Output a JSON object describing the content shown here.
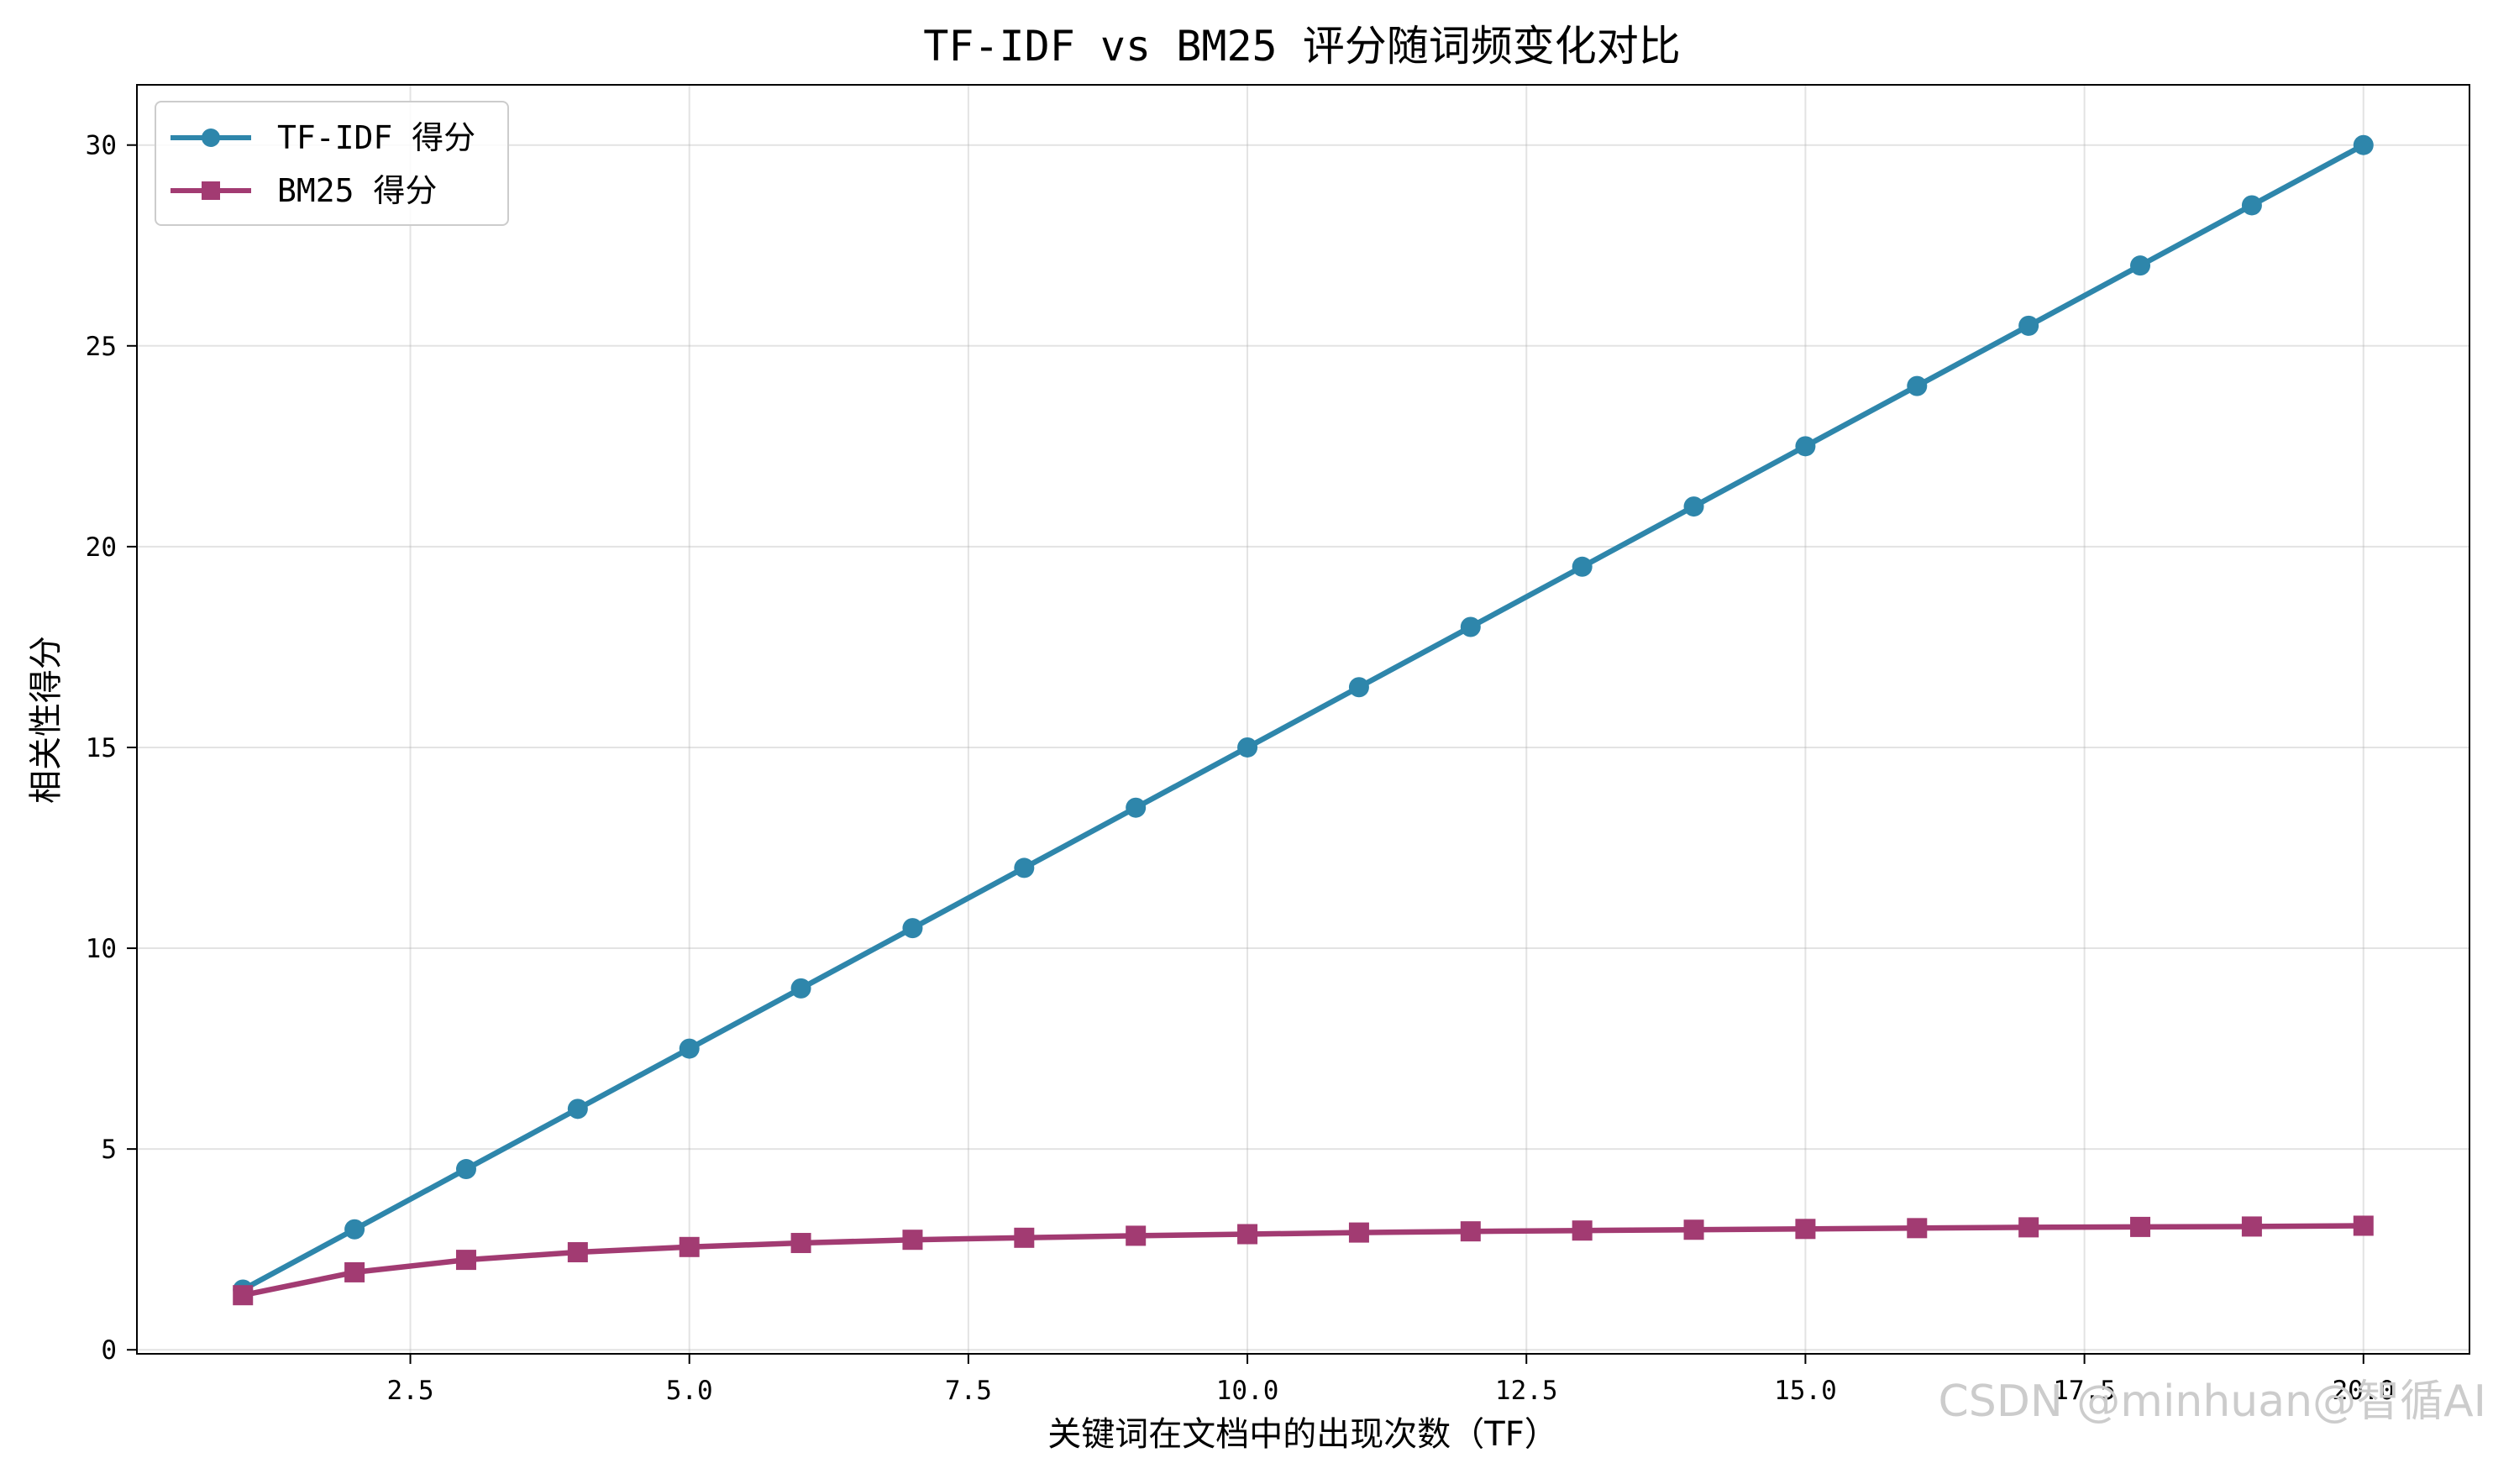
{
  "chart_data": {
    "type": "line",
    "title": "TF-IDF vs BM25 评分随词频变化对比",
    "xlabel": "关键词在文档中的出现次数（TF）",
    "ylabel": "相关性得分",
    "xlim": [
      0.05,
      20.95
    ],
    "ylim": [
      -0.1,
      31.5
    ],
    "xticks": [
      2.5,
      5.0,
      7.5,
      10.0,
      12.5,
      15.0,
      17.5,
      20.0
    ],
    "xtick_labels": [
      "2.5",
      "5.0",
      "7.5",
      "10.0",
      "12.5",
      "15.0",
      "17.5",
      "20.0"
    ],
    "yticks": [
      0,
      5,
      10,
      15,
      20,
      25,
      30
    ],
    "ytick_labels": [
      "0",
      "5",
      "10",
      "15",
      "20",
      "25",
      "30"
    ],
    "grid": true,
    "legend_position": "top-left",
    "x": [
      1,
      2,
      3,
      4,
      5,
      6,
      7,
      8,
      9,
      10,
      11,
      12,
      13,
      14,
      15,
      16,
      17,
      18,
      19,
      20
    ],
    "series": [
      {
        "name": "TF-IDF 得分",
        "color": "#2E86AB",
        "marker": "circle",
        "values": [
          1.5,
          3.0,
          4.5,
          6.0,
          7.5,
          9.0,
          10.5,
          12.0,
          13.5,
          15.0,
          16.5,
          18.0,
          19.5,
          21.0,
          22.5,
          24.0,
          25.5,
          27.0,
          28.5,
          30.0
        ]
      },
      {
        "name": "BM25 得分",
        "color": "#A23B72",
        "marker": "square",
        "values": [
          1.36,
          1.93,
          2.24,
          2.43,
          2.56,
          2.66,
          2.74,
          2.79,
          2.84,
          2.88,
          2.92,
          2.95,
          2.97,
          2.99,
          3.01,
          3.03,
          3.05,
          3.06,
          3.07,
          3.09
        ]
      }
    ]
  },
  "watermark": "CSDN @minhuan@智循AI"
}
